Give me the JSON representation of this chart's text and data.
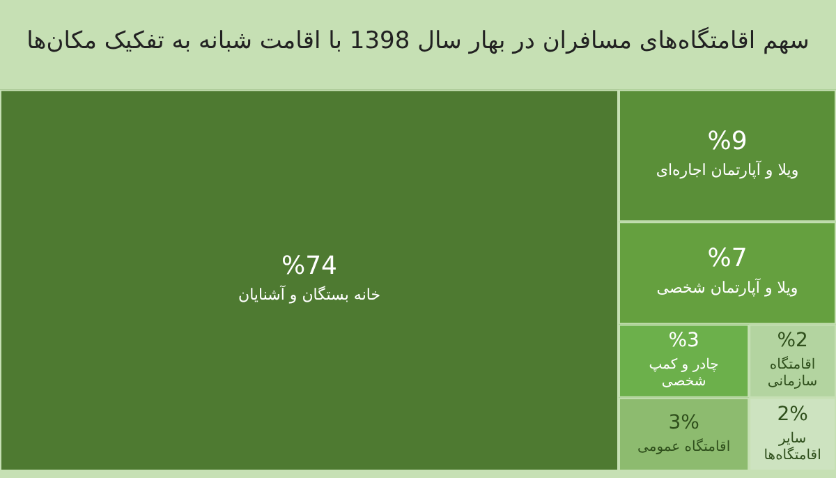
{
  "chart_data": {
    "type": "other",
    "title": "سهم اقامتگاه‌های مسافران در بهار سال 1398 با اقامت شبانه به تفکیک مکان‌ها",
    "categories": [
      "خانه بستگان و آشنایان",
      "ویلا و آپارتمان اجاره‌ای",
      "ویلا و آپارتمان شخصی",
      "چادر و کمپ شخصی",
      "اقامتگاه عمومی",
      "اقامتگاه سازمانی",
      "سایر اقامتگاه‌ها"
    ],
    "values": [
      74,
      9,
      7,
      3,
      3,
      2,
      2
    ],
    "value_labels": [
      "%74",
      "%9",
      "%7",
      "%3",
      "3%",
      "%2",
      "2%"
    ],
    "colors": [
      "#4e7a31",
      "#5a8f38",
      "#65a03f",
      "#6cb04b",
      "#8dbb6f",
      "#b3d4a0",
      "#cde3c0"
    ]
  }
}
